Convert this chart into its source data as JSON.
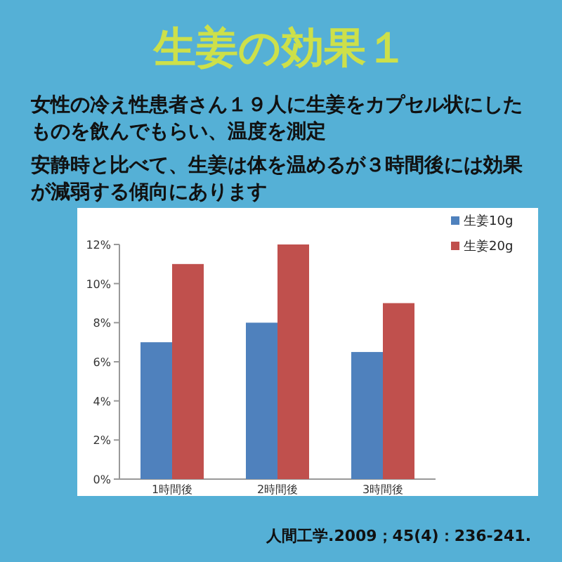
{
  "chart_data": {
    "type": "bar",
    "title": "生姜の効果１",
    "subtitle": "女性の冷え性患者さん１９人に生姜をカプセル状にしたものを飲んでもらい、温度を測定",
    "annotations": [
      "安静時と比べて、生姜は体を温めるが３時間後には効果が減弱する傾向にあります",
      "人間工学.2009；45(4)：236-241."
    ],
    "categories": [
      "1時間後",
      "2時間後",
      "3時間後"
    ],
    "series": [
      {
        "name": "生姜10g",
        "color": "#4f81bd",
        "values": [
          7,
          8,
          6.5
        ]
      },
      {
        "name": "生姜20g",
        "color": "#c0504d",
        "values": [
          11,
          12,
          9
        ]
      }
    ],
    "ylim": [
      0,
      12
    ],
    "yticks": [
      {
        "value": 0,
        "label": "0%"
      },
      {
        "value": 2,
        "label": "2%"
      },
      {
        "value": 4,
        "label": "4%"
      },
      {
        "value": 6,
        "label": "6%"
      },
      {
        "value": 8,
        "label": "8%"
      },
      {
        "value": 10,
        "label": "10%"
      },
      {
        "value": 12,
        "label": "12%"
      }
    ],
    "grid": false,
    "legend": "right"
  }
}
